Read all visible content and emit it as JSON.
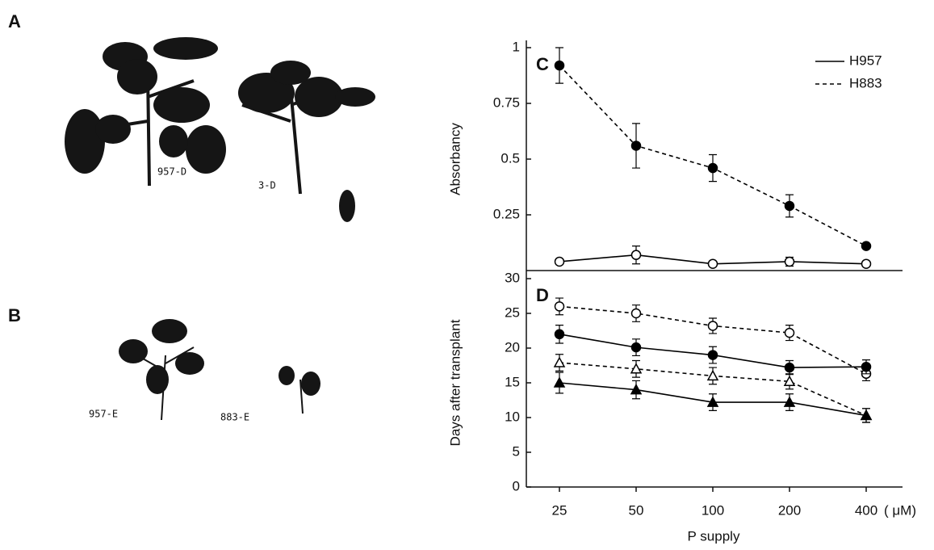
{
  "figure_labels": {
    "a": "A",
    "b": "B"
  },
  "photo_labels": [
    "957-D",
    "3-D",
    "957-E",
    "883-E"
  ],
  "chart_data": [
    {
      "type": "line",
      "panel": "C",
      "ylabel": "Absorbancy",
      "x": [
        25,
        50,
        100,
        200,
        400
      ],
      "xscale": "log",
      "ylim": [
        0,
        1
      ],
      "yticks": [
        0.25,
        0.5,
        0.75,
        1
      ],
      "legend": "upper right",
      "series": [
        {
          "name": "H957",
          "color": "#000000",
          "line_style": "solid",
          "marker": "circle",
          "marker_fill": "open",
          "values": [
            0.04,
            0.07,
            0.03,
            0.04,
            0.03
          ],
          "errors": [
            0.01,
            0.04,
            0.01,
            0.02,
            0.01
          ]
        },
        {
          "name": "H883",
          "color": "#000000",
          "line_style": "dashed",
          "marker": "circle",
          "marker_fill": "filled",
          "values": [
            0.92,
            0.56,
            0.46,
            0.29,
            0.11
          ],
          "errors": [
            0.08,
            0.1,
            0.06,
            0.05,
            0.01
          ]
        }
      ]
    },
    {
      "type": "line",
      "panel": "D",
      "ylabel": "Days after transplant",
      "xlabel": "P supply",
      "x_unit": "( μM)",
      "x": [
        25,
        50,
        100,
        200,
        400
      ],
      "xscale": "log",
      "xticks": [
        25,
        50,
        100,
        200,
        400
      ],
      "ylim": [
        0,
        30
      ],
      "yticks": [
        0,
        5,
        10,
        15,
        20,
        25,
        30
      ],
      "series": [
        {
          "color": "#000000",
          "line_style": "dashed",
          "marker": "circle",
          "marker_fill": "open",
          "values": [
            26,
            25,
            23.2,
            22.2,
            16.3
          ],
          "errors": [
            1.2,
            1.2,
            1.1,
            1.1,
            1
          ]
        },
        {
          "color": "#000000",
          "line_style": "solid",
          "marker": "circle",
          "marker_fill": "filled",
          "values": [
            22,
            20.1,
            19,
            17.2,
            17.3
          ],
          "errors": [
            1.3,
            1.2,
            1.2,
            1,
            1
          ]
        },
        {
          "color": "#000000",
          "line_style": "dashed",
          "marker": "triangle",
          "marker_fill": "open",
          "values": [
            17.9,
            17,
            16,
            15.2,
            10.3
          ],
          "errors": [
            1.2,
            1.2,
            1.2,
            1.1,
            1
          ]
        },
        {
          "color": "#000000",
          "line_style": "solid",
          "marker": "triangle",
          "marker_fill": "filled",
          "values": [
            15,
            14,
            12.2,
            12.2,
            10.3
          ],
          "errors": [
            1.5,
            1.3,
            1.2,
            1.2,
            1
          ]
        }
      ]
    }
  ]
}
